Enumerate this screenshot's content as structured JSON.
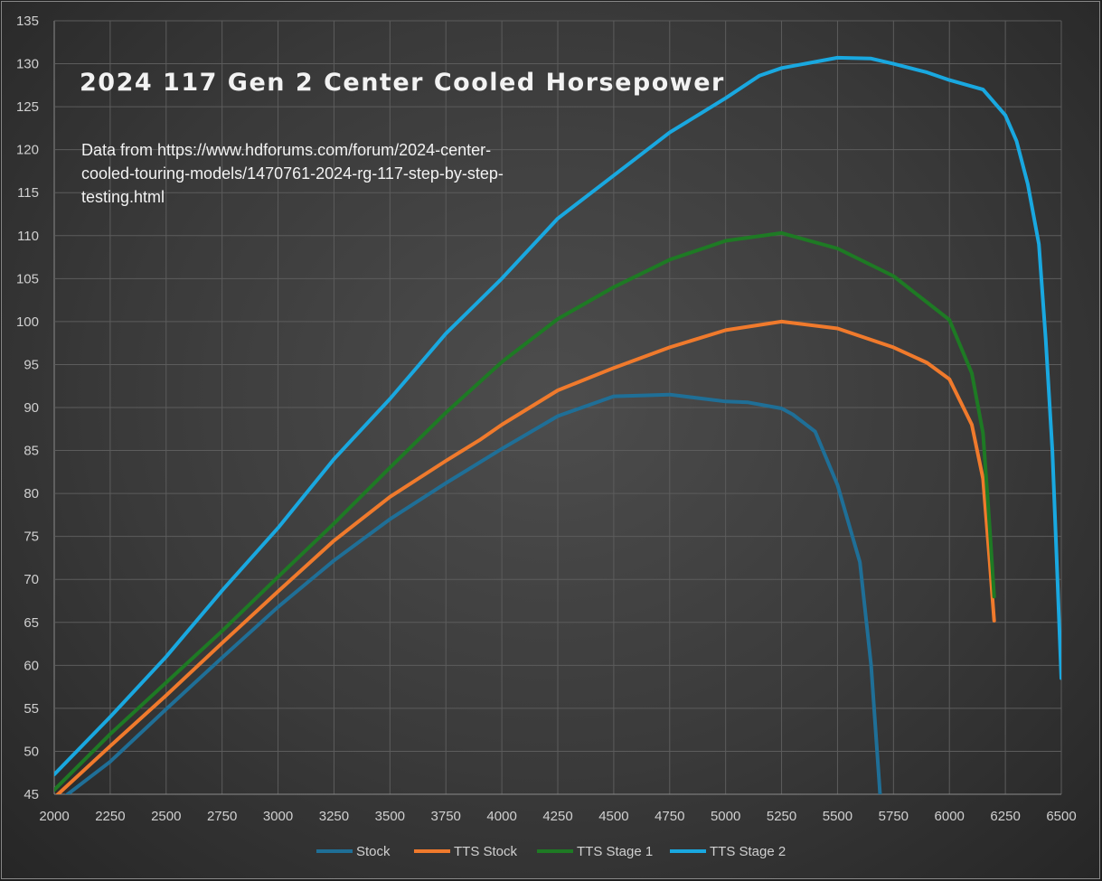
{
  "chart_data": {
    "type": "line",
    "title": "2024 117 Gen 2 Center Cooled Horsepower",
    "annotation": [
      "Data from https://www.hdforums.com/forum/2024-center-",
      "cooled-touring-models/1470761-2024-rg-117-step-by-step-",
      "testing.html"
    ],
    "xlabel": "",
    "ylabel": "",
    "xlim": [
      2000,
      6500
    ],
    "ylim": [
      45,
      135
    ],
    "xticks": [
      2000,
      2250,
      2500,
      2750,
      3000,
      3250,
      3500,
      3750,
      4000,
      4250,
      4500,
      4750,
      5000,
      5250,
      5500,
      5750,
      6000,
      6250,
      6500
    ],
    "yticks": [
      45,
      50,
      55,
      60,
      65,
      70,
      75,
      80,
      85,
      90,
      95,
      100,
      105,
      110,
      115,
      120,
      125,
      130,
      135
    ],
    "grid": true,
    "legend_position": "bottom",
    "series": [
      {
        "name": "Stock",
        "color": "#1f6f97",
        "x": [
          2000,
          2250,
          2500,
          2750,
          3000,
          3250,
          3500,
          3750,
          4000,
          4250,
          4500,
          4750,
          5000,
          5100,
          5250,
          5300,
          5400,
          5500,
          5600,
          5650,
          5690
        ],
        "y": [
          43.8,
          48.8,
          54.9,
          60.9,
          66.8,
          72.2,
          77,
          81.2,
          85.2,
          89,
          91.3,
          91.5,
          90.7,
          90.6,
          89.9,
          89.2,
          87.2,
          81,
          72,
          60,
          45
        ]
      },
      {
        "name": "TTS Stock",
        "color": "#f07a2c",
        "x": [
          2000,
          2250,
          2500,
          2750,
          3000,
          3250,
          3500,
          3750,
          3900,
          4000,
          4250,
          4500,
          4750,
          5000,
          5250,
          5500,
          5750,
          5900,
          6000,
          6100,
          6150,
          6180,
          6200
        ],
        "y": [
          44.6,
          50.6,
          56.5,
          62.6,
          68.6,
          74.5,
          79.6,
          83.8,
          86.2,
          88,
          92,
          94.6,
          97,
          99,
          100,
          99.2,
          97,
          95.2,
          93.3,
          88,
          81.7,
          72,
          65.2
        ]
      },
      {
        "name": "TTS Stage 1",
        "color": "#1e7a24",
        "x": [
          2000,
          2250,
          2500,
          2750,
          3000,
          3250,
          3500,
          3750,
          4000,
          4250,
          4500,
          4750,
          5000,
          5250,
          5500,
          5750,
          6000,
          6100,
          6150,
          6180,
          6200
        ],
        "y": [
          45.5,
          52,
          58,
          64,
          70.3,
          76.5,
          83,
          89.4,
          95.3,
          100.3,
          104,
          107.2,
          109.4,
          110.3,
          108.5,
          105.3,
          100.2,
          94,
          87,
          76,
          68
        ]
      },
      {
        "name": "TTS Stage 2",
        "color": "#19a8e0",
        "x": [
          2000,
          2250,
          2500,
          2750,
          3000,
          3250,
          3500,
          3750,
          4000,
          4250,
          4500,
          4750,
          5000,
          5150,
          5250,
          5500,
          5650,
          5750,
          5900,
          6000,
          6150,
          6250,
          6300,
          6350,
          6400,
          6430,
          6460,
          6480,
          6500
        ],
        "y": [
          47.3,
          54,
          61,
          68.7,
          76,
          84,
          91,
          98.6,
          105,
          112,
          117,
          122,
          126,
          128.6,
          129.5,
          130.7,
          130.6,
          130,
          129,
          128.1,
          127,
          124,
          121,
          116,
          109,
          98,
          85,
          72,
          58.5
        ]
      }
    ]
  }
}
